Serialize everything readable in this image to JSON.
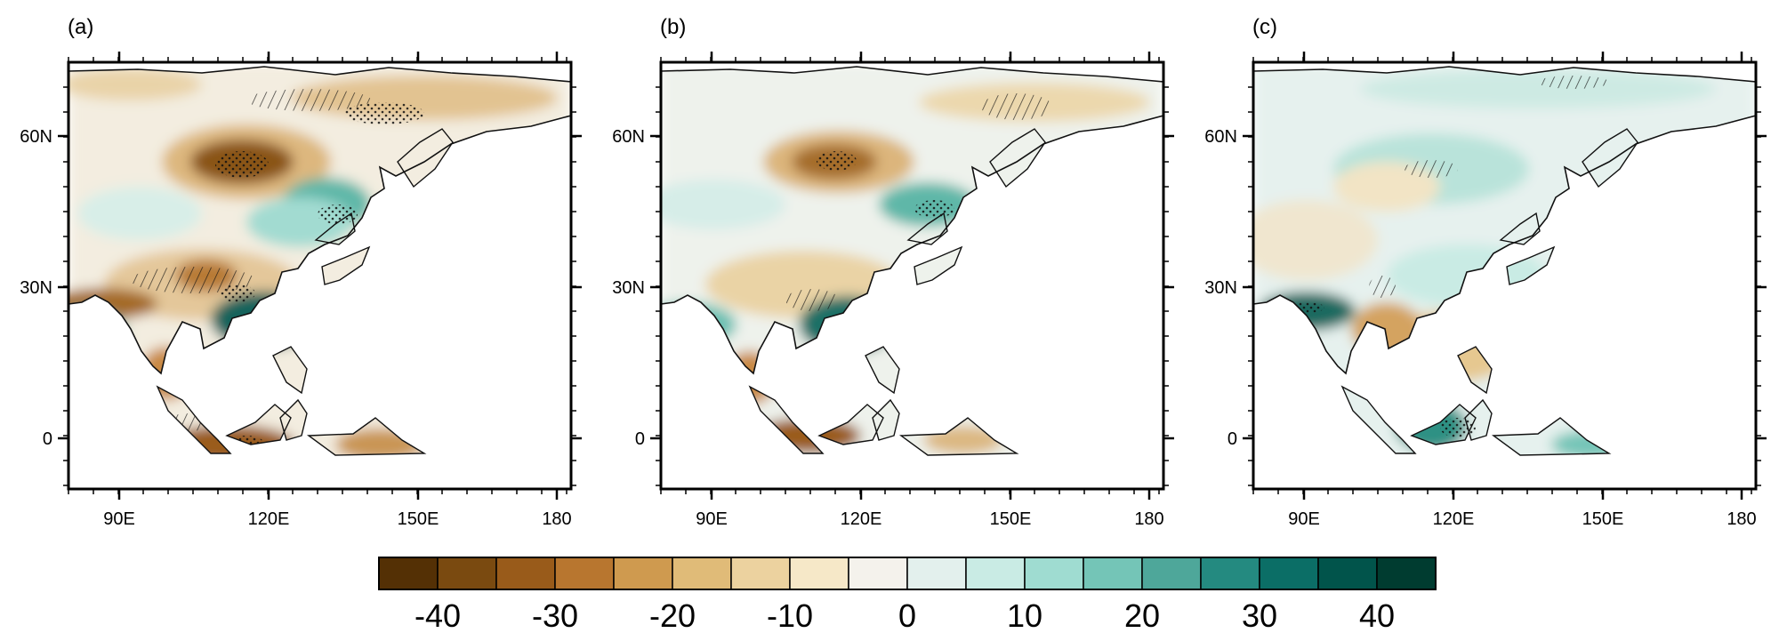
{
  "panels": [
    {
      "label": "(a)"
    },
    {
      "label": "(b)"
    },
    {
      "label": "(c)"
    }
  ],
  "x_ticks": [
    "90E",
    "120E",
    "150E",
    "180"
  ],
  "y_ticks": [
    "60N",
    "30N",
    "0"
  ],
  "colorbar": {
    "tick_labels": [
      "-40",
      "-30",
      "-20",
      "-10",
      "0",
      "10",
      "20",
      "30",
      "40"
    ],
    "colors": [
      "#543005",
      "#7a4a10",
      "#995b1a",
      "#b8762f",
      "#cf9a4f",
      "#e0bb78",
      "#ecd29f",
      "#f6e8c8",
      "#f4f2ec",
      "#e3f0ed",
      "#c9ebe4",
      "#9fdcd1",
      "#74c5b7",
      "#4ea79a",
      "#248a80",
      "#0b6e66",
      "#01544b",
      "#003c30"
    ]
  }
}
